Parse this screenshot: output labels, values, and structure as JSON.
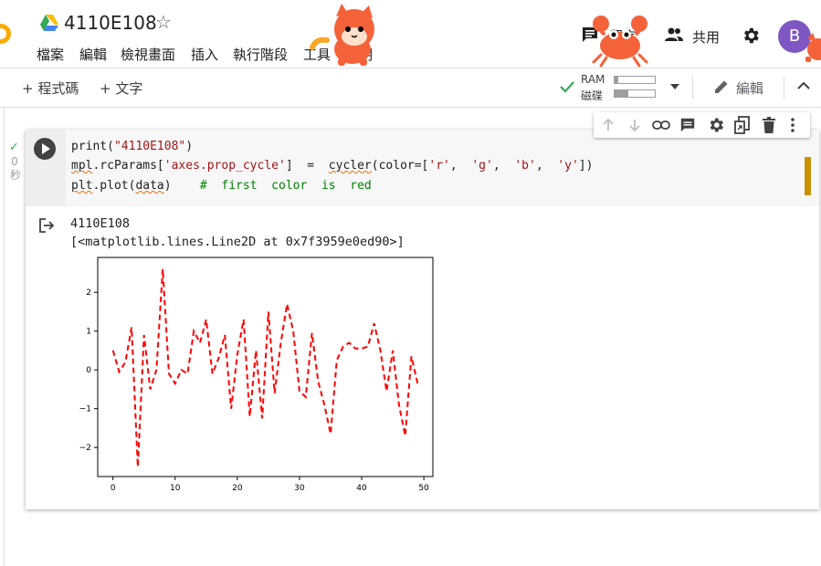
{
  "notebook": {
    "title": "4110E108",
    "menu": [
      "檔案",
      "編輯",
      "檢視畫面",
      "插入",
      "執行階段",
      "工具",
      "說明"
    ],
    "comment_label": "留言",
    "share_label": "共用",
    "avatar_letter": "B"
  },
  "toolbar": {
    "add_code": "+ 程式碼",
    "add_text": "+ 文字",
    "ram_label": "RAM",
    "disk_label": "磁碟",
    "ram_fraction": 0.08,
    "disk_fraction": 0.35,
    "edit_label": "編輯"
  },
  "cell": {
    "exec_count": "0",
    "exec_unit": "秒",
    "code": {
      "line1_fn": "print(",
      "line1_str": "\"4110E108\"",
      "line1_end": ")",
      "line2_a": "mpl",
      "line2_b": ".rcParams[",
      "line2_c": "'axes.prop_cycle'",
      "line2_d": "]  =  ",
      "line2_e": "cycler",
      "line2_f": "(color=[",
      "line2_g": "'r'",
      "line2_h": ",  ",
      "line2_i": "'g'",
      "line2_j": ",  ",
      "line2_k": "'b'",
      "line2_l": ",  ",
      "line2_m": "'y'",
      "line2_n": "])",
      "line3_a": "plt",
      "line3_b": ".plot(",
      "line3_c": "data",
      "line3_d": ")    ",
      "line3_comment": "#  first  color  is  red"
    },
    "output": {
      "line1": "4110E108",
      "line2": "[<matplotlib.lines.Line2D at 0x7f3959e0ed90>]"
    }
  },
  "colors": {
    "accent_orange": "#f9ab00",
    "avatar": "#7e57c2",
    "line_red": "#ff0000",
    "check_green": "#34a853"
  },
  "chart_data": {
    "type": "line",
    "x": [
      0,
      1,
      2,
      3,
      4,
      5,
      6,
      7,
      8,
      9,
      10,
      11,
      12,
      13,
      14,
      15,
      16,
      17,
      18,
      19,
      20,
      21,
      22,
      23,
      24,
      25,
      26,
      27,
      28,
      29,
      30,
      31,
      32,
      33,
      34,
      35,
      36,
      37,
      38,
      39,
      40,
      41,
      42,
      43,
      44,
      45,
      46,
      47,
      48,
      49
    ],
    "series": [
      {
        "values": [
          0.5,
          -0.05,
          0.2,
          1.1,
          -2.5,
          0.9,
          -0.5,
          0.0,
          2.6,
          -0.1,
          -0.35,
          0.0,
          -0.1,
          1.0,
          0.7,
          1.3,
          -0.1,
          0.3,
          0.9,
          -1.0,
          0.4,
          1.3,
          -1.2,
          0.5,
          -1.25,
          1.5,
          -0.6,
          0.7,
          1.7,
          1.0,
          -0.55,
          -0.7,
          0.95,
          -0.3,
          -0.9,
          -1.65,
          0.25,
          0.6,
          0.7,
          0.55,
          0.55,
          0.6,
          1.2,
          0.5,
          -0.55,
          0.5,
          -0.9,
          -1.7,
          0.35,
          -0.35
        ],
        "color": "#ff0000",
        "style": "dashed"
      }
    ],
    "xlim": [
      -2.45,
      51.45
    ],
    "ylim": [
      -2.75,
      2.9
    ],
    "xticks": [
      0,
      10,
      20,
      30,
      40,
      50
    ],
    "yticks": [
      -2,
      -1,
      0,
      1,
      2
    ],
    "title": "",
    "xlabel": "",
    "ylabel": "",
    "grid": false
  }
}
